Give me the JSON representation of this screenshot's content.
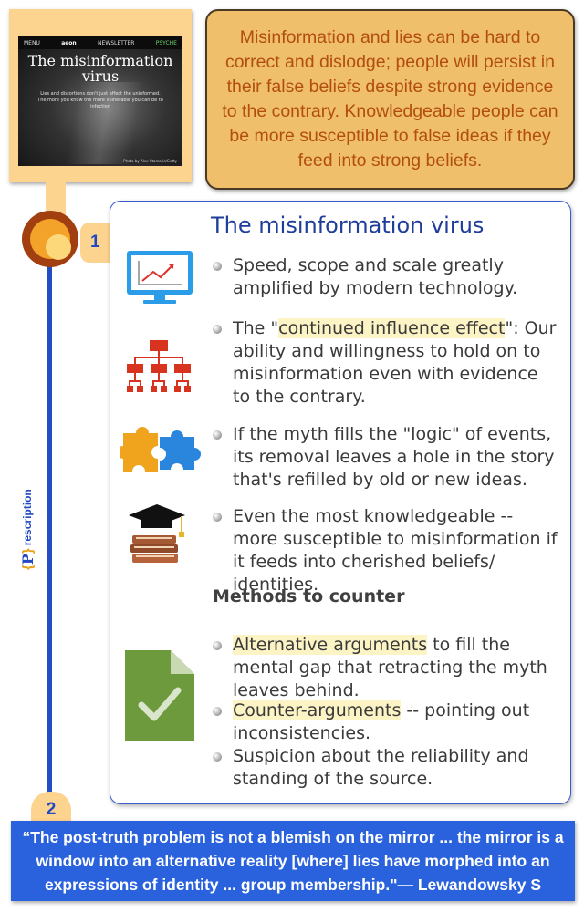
{
  "thumbnail": {
    "menu": "MENU",
    "logo": "aeon",
    "newsletter": "NEWSLETTER",
    "section": "PSYCHE",
    "title": "The misinformation virus",
    "subtitle": "Lies and distortions don't just affect the uninformed. The more you know the more vulnerable you can be to infection",
    "credit": "Photo by Alex Stamatis/Getty"
  },
  "callout": {
    "text": "Misinformation and lies can be hard to correct and dislodge; people will persist in their false beliefs despite strong evidence to the contrary. Knowledgeable people can be more susceptible to false ideas if they feed into strong beliefs."
  },
  "timeline": {
    "step1": "1",
    "step2": "2",
    "brand_letter": "P",
    "brand_word": "rescription",
    "brand_open": "{",
    "brand_close": "}"
  },
  "card": {
    "title": "The misinformation virus",
    "bullets": [
      {
        "text": "Speed, scope and scale greatly amplified by modern technology."
      },
      {
        "pre": "The \"",
        "highlight": "continued influence effect",
        "post": "\": Our ability and willingness to hold on to misinformation even with evidence to the contrary."
      },
      {
        "text": "If the myth fills the \"logic\" of events, its removal leaves a hole in the story that's refilled by old or new ideas."
      },
      {
        "text": "Even the most knowledgeable -- more susceptible to misinformation if it feeds into cherished beliefs/ identities."
      }
    ],
    "methods_heading": "Methods to counter",
    "methods": [
      {
        "highlight": "Alternative arguments",
        "post": " to fill the mental gap that retracting the myth leaves behind."
      },
      {
        "highlight": "Counter-arguments",
        "post": " -- pointing out inconsistencies."
      },
      {
        "text": "Suspicion about the reliability and standing of the source."
      }
    ]
  },
  "icons": {
    "monitor": "monitor-chart-icon",
    "org_chart": "org-chart-icon",
    "puzzle": "puzzle-icon",
    "graduation": "graduation-books-icon",
    "document_check": "document-check-icon"
  },
  "quote": {
    "text": "“The post-truth problem is not a blemish on the mirror ... the mirror is a window into an alternative reality [where] lies have morphed into an expressions of identity ... group membership.\"— Lewandowsky S"
  },
  "colors": {
    "callout_bg": "#f0bf6c",
    "callout_text": "#b24e0f",
    "accent_blue": "#224ac0",
    "quote_bg": "#2962dc",
    "highlight": "#fdf4c6"
  }
}
